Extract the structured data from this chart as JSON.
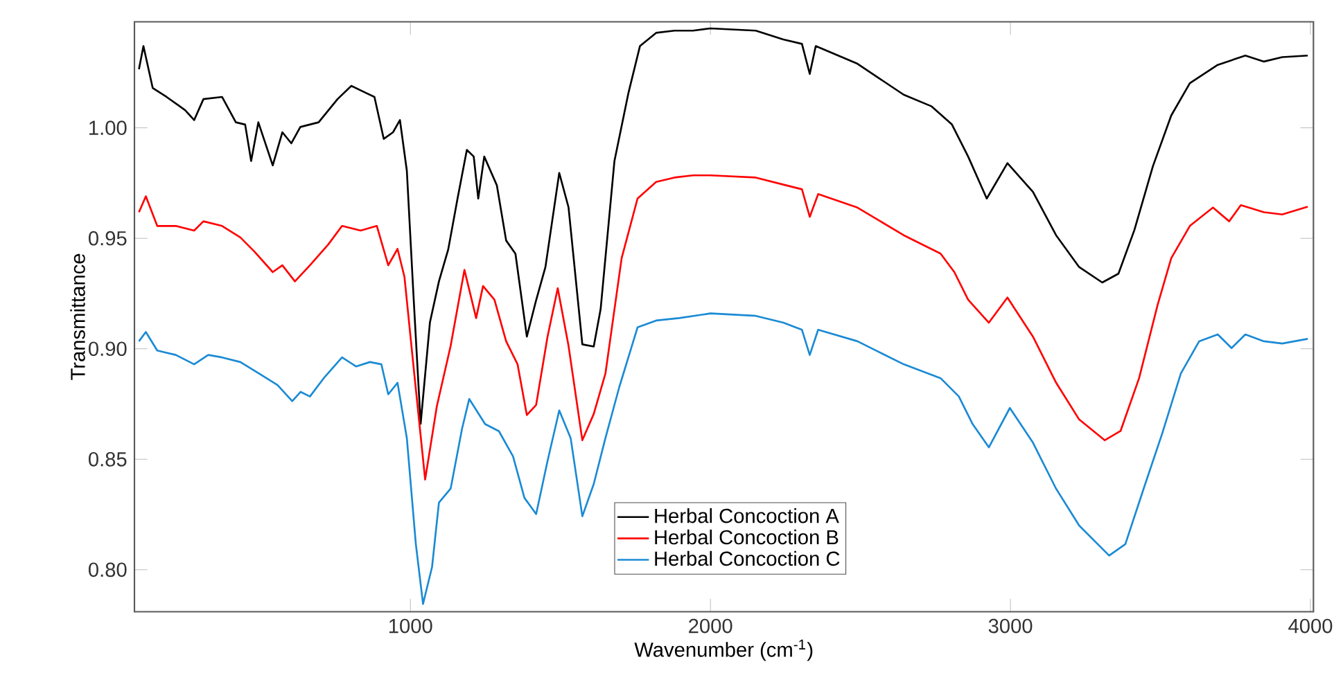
{
  "chart_data": {
    "type": "line",
    "xlabel": "Wavenumber (cm$^{-1}$)",
    "ylabel": "Transmittance",
    "xlim": [
      80,
      4010
    ],
    "ylim": [
      0.781,
      1.048
    ],
    "xticks": [
      1000,
      2000,
      3000,
      4000
    ],
    "yticks": [
      {
        "value": 0.8,
        "label": "0.80"
      },
      {
        "value": 0.85,
        "label": "0.85"
      },
      {
        "value": 0.9,
        "label": "0.90"
      },
      {
        "value": 0.95,
        "label": "0.95"
      },
      {
        "value": 1.0,
        "label": "1.00"
      }
    ],
    "grid": false,
    "legend": "bottom",
    "marker": "none",
    "line_style": "solid",
    "series": [
      {
        "name": "Herbal Concoction A",
        "color": "#000000",
        "x": [
          95,
          110,
          141,
          187,
          249,
          279,
          310,
          372,
          418,
          449,
          469,
          493,
          541,
          573,
          603,
          633,
          694,
          757,
          803,
          849,
          880,
          911,
          942,
          965,
          988,
          1011,
          1034,
          1065,
          1095,
          1126,
          1157,
          1188,
          1211,
          1226,
          1246,
          1288,
          1319,
          1350,
          1388,
          1419,
          1450,
          1496,
          1527,
          1573,
          1611,
          1634,
          1680,
          1727,
          1765,
          1819,
          1880,
          1942,
          2000,
          2151,
          2243,
          2305,
          2331,
          2351,
          2490,
          2644,
          2736,
          2805,
          2859,
          2921,
          2990,
          3075,
          3152,
          3229,
          3306,
          3360,
          3413,
          3475,
          3536,
          3598,
          3691,
          3783,
          3845,
          3906,
          3991
        ],
        "values": [
          1.0265,
          1.037,
          1.018,
          1.014,
          1.008,
          1.0035,
          1.013,
          1.014,
          1.0025,
          1.0015,
          0.985,
          1.0025,
          0.983,
          0.998,
          0.993,
          1.0004,
          1.0025,
          1.013,
          1.019,
          1.016,
          1.014,
          0.995,
          0.998,
          1.0035,
          0.9806,
          0.922,
          0.866,
          0.912,
          0.9305,
          0.945,
          0.968,
          0.99,
          0.987,
          0.968,
          0.987,
          0.974,
          0.949,
          0.943,
          0.9055,
          0.922,
          0.937,
          0.9796,
          0.964,
          0.902,
          0.901,
          0.918,
          0.985,
          1.016,
          1.037,
          1.043,
          1.044,
          1.044,
          1.045,
          1.044,
          1.04,
          1.038,
          1.0244,
          1.037,
          1.029,
          1.015,
          1.0098,
          1.0015,
          0.987,
          0.968,
          0.984,
          0.971,
          0.9514,
          0.937,
          0.93,
          0.934,
          0.9537,
          0.9827,
          1.0056,
          1.0202,
          1.0285,
          1.0327,
          1.03,
          1.032,
          1.0327
        ]
      },
      {
        "name": "Herbal Concoction B",
        "color": "#ff0000",
        "x": [
          95,
          118,
          156,
          218,
          279,
          310,
          372,
          433,
          480,
          541,
          573,
          615,
          665,
          726,
          772,
          834,
          888,
          926,
          957,
          980,
          1011,
          1049,
          1088,
          1134,
          1180,
          1219,
          1242,
          1280,
          1319,
          1357,
          1388,
          1419,
          1457,
          1491,
          1527,
          1573,
          1611,
          1650,
          1704,
          1757,
          1819,
          1880,
          1942,
          2000,
          2151,
          2243,
          2305,
          2331,
          2359,
          2490,
          2644,
          2767,
          2813,
          2859,
          2928,
          2990,
          3075,
          3152,
          3229,
          3314,
          3367,
          3429,
          3491,
          3536,
          3598,
          3675,
          3729,
          3768,
          3845,
          3906,
          3991
        ],
        "values": [
          0.9618,
          0.969,
          0.9556,
          0.9556,
          0.9535,
          0.9577,
          0.9556,
          0.9504,
          0.944,
          0.9347,
          0.9378,
          0.9305,
          0.9378,
          0.9472,
          0.9556,
          0.9535,
          0.9556,
          0.9378,
          0.9452,
          0.9326,
          0.891,
          0.8408,
          0.874,
          0.9013,
          0.9357,
          0.9139,
          0.9284,
          0.9222,
          0.9034,
          0.893,
          0.87,
          0.8746,
          0.9055,
          0.9274,
          0.9013,
          0.8586,
          0.8705,
          0.8888,
          0.941,
          0.968,
          0.9755,
          0.9775,
          0.9785,
          0.9785,
          0.9775,
          0.9743,
          0.9722,
          0.9597,
          0.97,
          0.9639,
          0.9514,
          0.9431,
          0.9347,
          0.9222,
          0.9118,
          0.9232,
          0.9055,
          0.8847,
          0.868,
          0.8586,
          0.8628,
          0.8868,
          0.9201,
          0.941,
          0.9556,
          0.9639,
          0.9577,
          0.965,
          0.9618,
          0.9608,
          0.9643
        ]
      },
      {
        "name": "Herbal Concoction C",
        "color": "#1a8ad4",
        "x": [
          95,
          118,
          156,
          218,
          279,
          326,
          372,
          433,
          495,
          557,
          606,
          634,
          665,
          711,
          772,
          819,
          865,
          903,
          926,
          957,
          988,
          1018,
          1042,
          1072,
          1095,
          1134,
          1172,
          1196,
          1249,
          1295,
          1342,
          1380,
          1419,
          1457,
          1496,
          1534,
          1573,
          1611,
          1650,
          1696,
          1757,
          1819,
          1896,
          2000,
          2151,
          2243,
          2305,
          2331,
          2359,
          2490,
          2644,
          2767,
          2828,
          2874,
          2928,
          2998,
          3075,
          3152,
          3229,
          3329,
          3383,
          3444,
          3506,
          3568,
          3629,
          3691,
          3737,
          3783,
          3845,
          3906,
          3991
        ],
        "values": [
          0.9034,
          0.9076,
          0.8992,
          0.8972,
          0.893,
          0.8972,
          0.8961,
          0.894,
          0.8888,
          0.8836,
          0.8763,
          0.8805,
          0.8784,
          0.8867,
          0.8961,
          0.892,
          0.894,
          0.893,
          0.8794,
          0.8846,
          0.8596,
          0.8116,
          0.7845,
          0.8012,
          0.8304,
          0.8367,
          0.8638,
          0.8773,
          0.8659,
          0.8627,
          0.8513,
          0.8325,
          0.8252,
          0.8492,
          0.8721,
          0.8596,
          0.8242,
          0.8388,
          0.8596,
          0.8826,
          0.9097,
          0.9128,
          0.9139,
          0.916,
          0.9149,
          0.9118,
          0.9086,
          0.8972,
          0.9086,
          0.9034,
          0.893,
          0.8867,
          0.8784,
          0.8659,
          0.8554,
          0.8732,
          0.8575,
          0.8367,
          0.82,
          0.8064,
          0.8116,
          0.8367,
          0.8617,
          0.8888,
          0.9034,
          0.9065,
          0.9003,
          0.9065,
          0.9034,
          0.9024,
          0.9045
        ]
      }
    ]
  }
}
